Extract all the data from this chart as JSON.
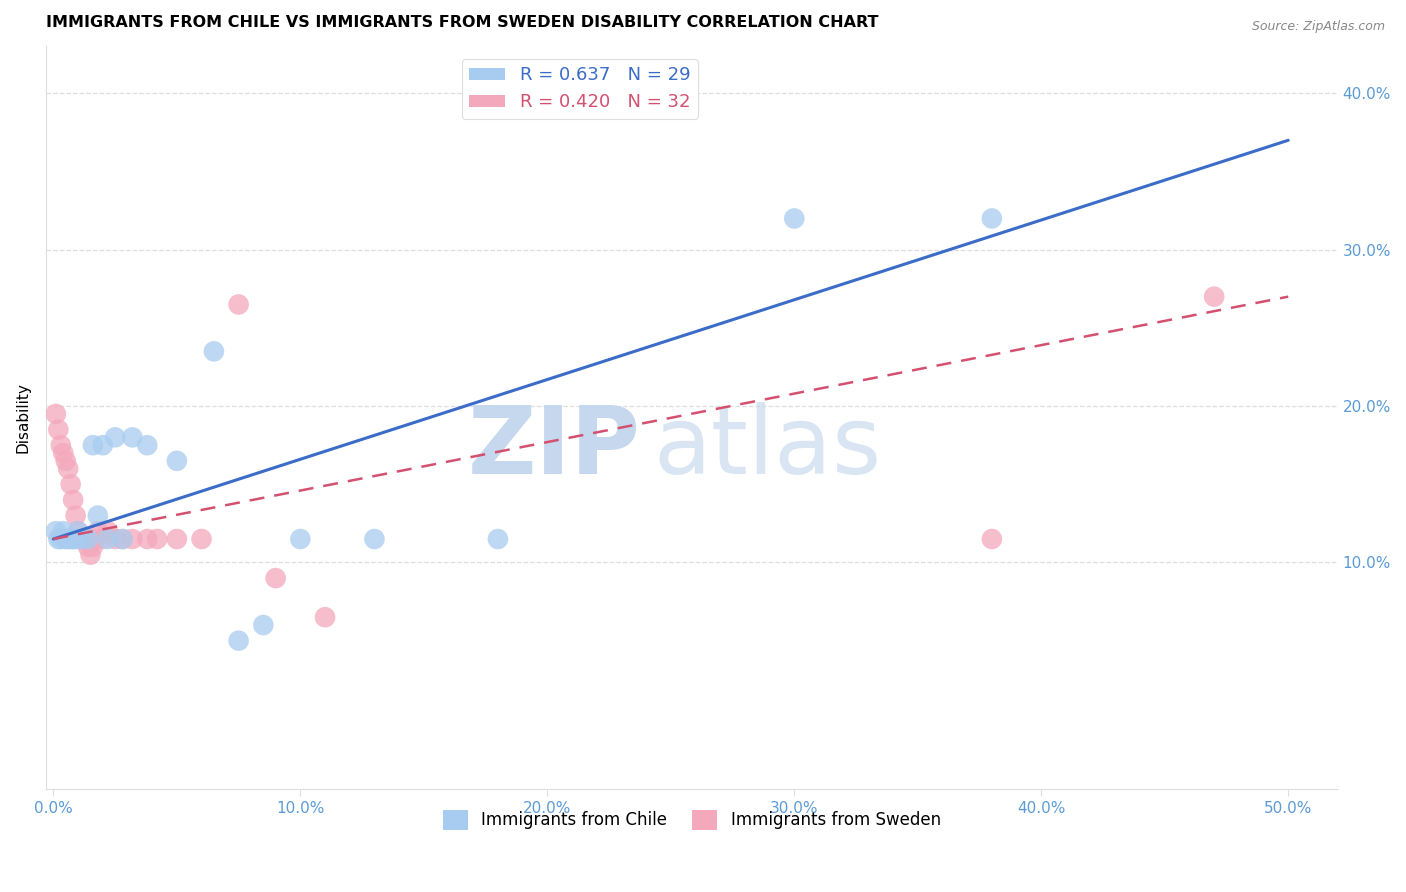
{
  "title": "IMMIGRANTS FROM CHILE VS IMMIGRANTS FROM SWEDEN DISABILITY CORRELATION CHART",
  "source": "Source: ZipAtlas.com",
  "ylabel": "Disability",
  "xlim": [
    -0.003,
    0.52
  ],
  "ylim": [
    -0.045,
    0.43
  ],
  "xticks": [
    0.0,
    0.1,
    0.2,
    0.3,
    0.4,
    0.5
  ],
  "xtick_labels": [
    "0.0%",
    "10.0%",
    "20.0%",
    "30.0%",
    "40.0%",
    "50.0%"
  ],
  "yticks": [
    0.1,
    0.2,
    0.3,
    0.4
  ],
  "ytick_labels": [
    "10.0%",
    "20.0%",
    "30.0%",
    "40.0%"
  ],
  "chile_color": "#A8CCF0",
  "sweden_color": "#F4A8BC",
  "chile_line_color": "#3B6CC8",
  "sweden_line_color": "#D45070",
  "chile_R": 0.637,
  "chile_N": 29,
  "sweden_R": 0.42,
  "sweden_N": 32,
  "chile_x": [
    0.001,
    0.002,
    0.003,
    0.004,
    0.005,
    0.006,
    0.007,
    0.008,
    0.009,
    0.01,
    0.012,
    0.014,
    0.016,
    0.018,
    0.02,
    0.022,
    0.025,
    0.028,
    0.032,
    0.038,
    0.05,
    0.065,
    0.075,
    0.085,
    0.1,
    0.13,
    0.18,
    0.3,
    0.38
  ],
  "chile_y": [
    0.12,
    0.115,
    0.115,
    0.12,
    0.115,
    0.115,
    0.115,
    0.115,
    0.115,
    0.12,
    0.115,
    0.115,
    0.175,
    0.13,
    0.175,
    0.115,
    0.18,
    0.115,
    0.18,
    0.175,
    0.165,
    0.235,
    0.05,
    0.06,
    0.115,
    0.115,
    0.115,
    0.32,
    0.32
  ],
  "sweden_x": [
    0.001,
    0.002,
    0.003,
    0.004,
    0.005,
    0.006,
    0.007,
    0.008,
    0.009,
    0.01,
    0.011,
    0.012,
    0.013,
    0.014,
    0.015,
    0.016,
    0.017,
    0.018,
    0.02,
    0.022,
    0.025,
    0.028,
    0.032,
    0.038,
    0.042,
    0.05,
    0.06,
    0.075,
    0.09,
    0.11,
    0.38,
    0.47
  ],
  "sweden_y": [
    0.195,
    0.185,
    0.175,
    0.17,
    0.165,
    0.16,
    0.15,
    0.14,
    0.13,
    0.12,
    0.115,
    0.115,
    0.115,
    0.11,
    0.105,
    0.11,
    0.115,
    0.12,
    0.115,
    0.12,
    0.115,
    0.115,
    0.115,
    0.115,
    0.115,
    0.115,
    0.115,
    0.265,
    0.09,
    0.065,
    0.115,
    0.27
  ],
  "watermark_zip_color": "#C5D8EE",
  "watermark_atlas_color": "#C5D8EE",
  "background_color": "#FFFFFF",
  "grid_color": "#DEDEDE",
  "tick_color": "#5B9BD5"
}
